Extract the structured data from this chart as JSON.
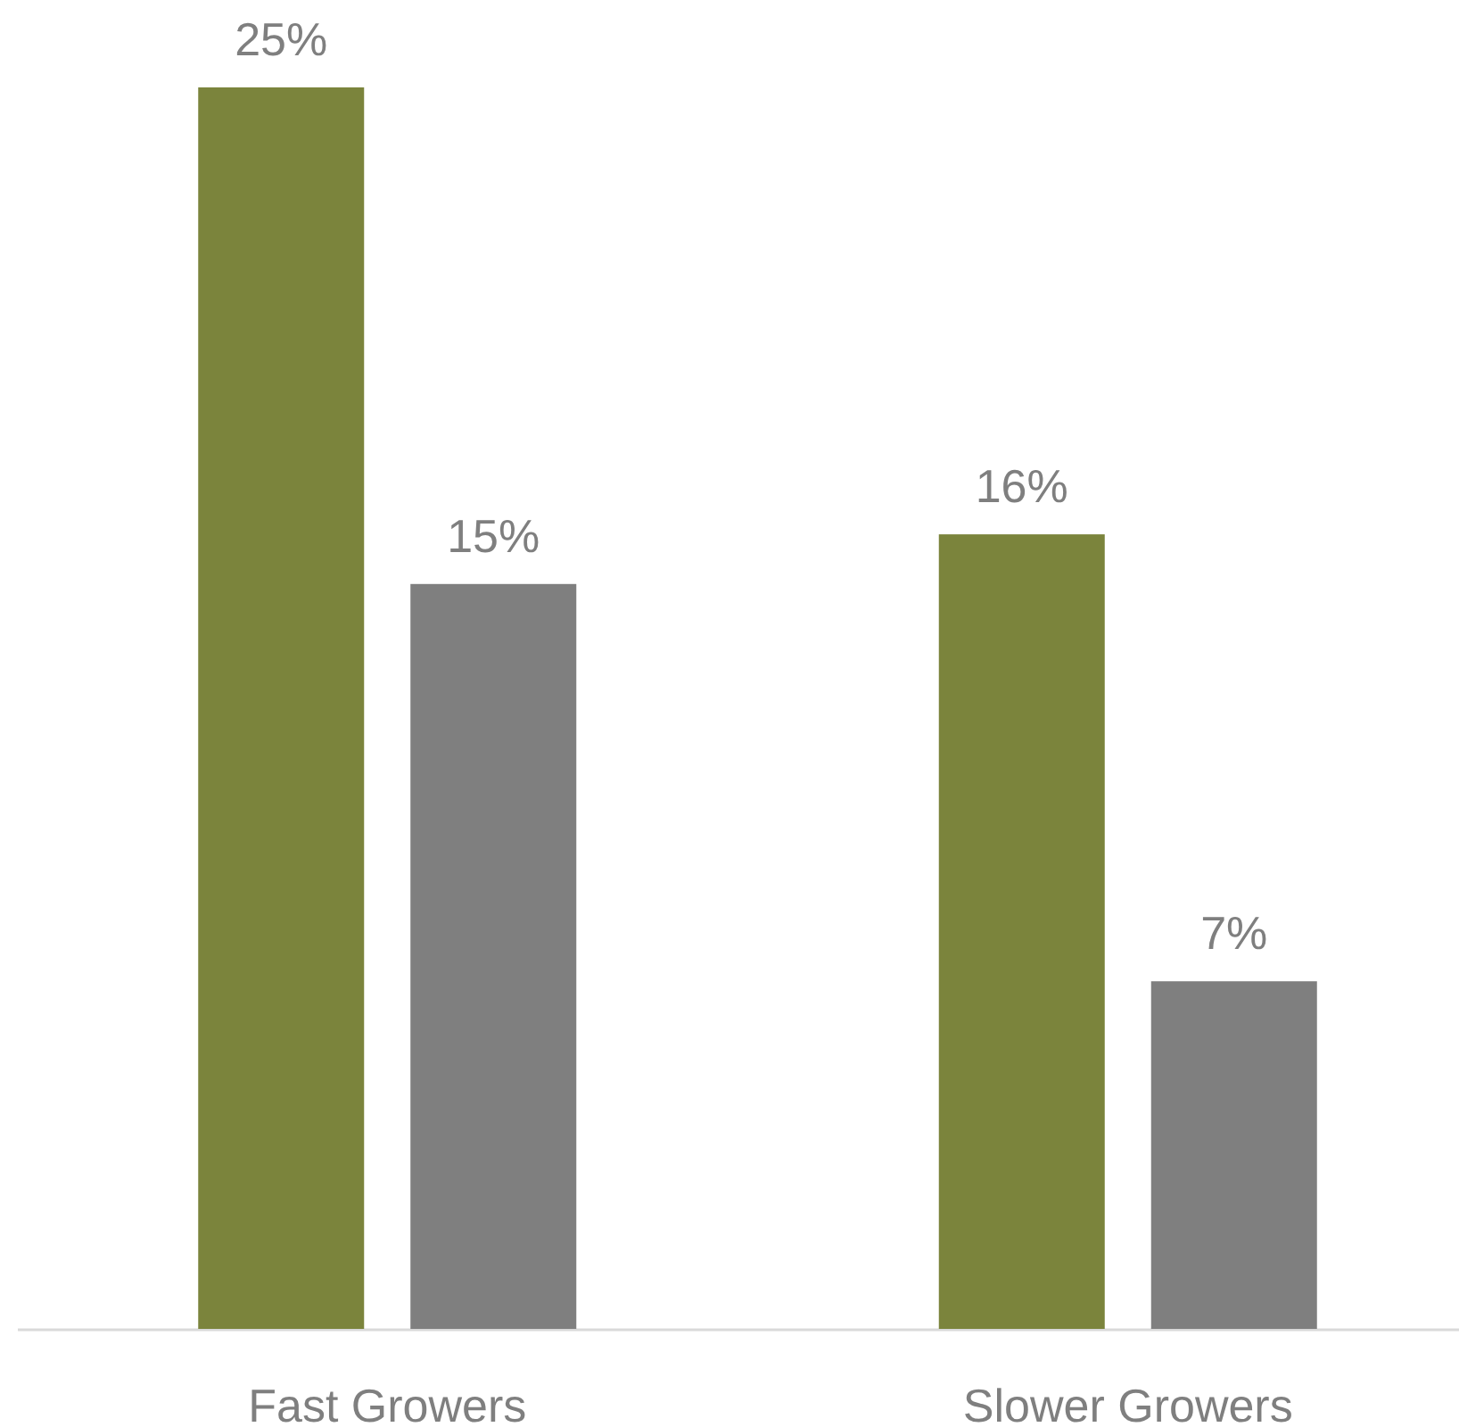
{
  "chart_data": {
    "type": "bar",
    "categories": [
      "Fast Growers",
      "Slower Growers"
    ],
    "series": [
      {
        "color": "#7b843c",
        "values": [
          25,
          16
        ],
        "value_labels": [
          "25%",
          "16%"
        ]
      },
      {
        "color": "#7f7f7f",
        "values": [
          15,
          7
        ],
        "value_labels": [
          "15%",
          "7%"
        ]
      }
    ]
  }
}
